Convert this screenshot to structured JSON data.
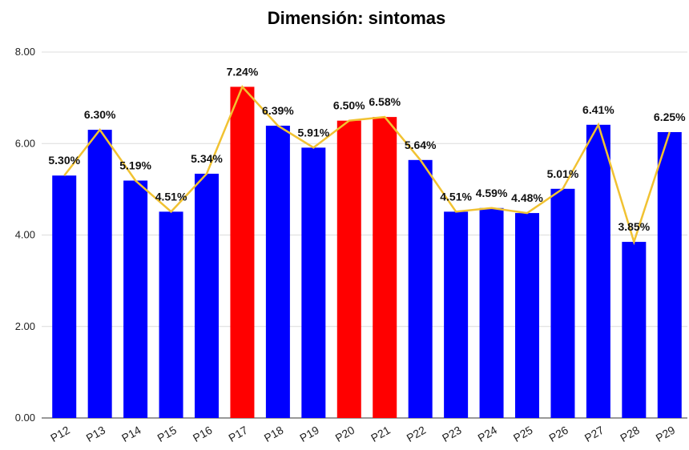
{
  "chart_data": {
    "type": "bar_line",
    "title": "Dimensión: sintomas",
    "categories": [
      "P12",
      "P13",
      "P14",
      "P15",
      "P16",
      "P17",
      "P18",
      "P19",
      "P20",
      "P21",
      "P22",
      "P23",
      "P24",
      "P25",
      "P26",
      "P27",
      "P28",
      "P29"
    ],
    "values": [
      5.3,
      6.3,
      5.19,
      4.51,
      5.34,
      7.24,
      6.39,
      5.91,
      6.5,
      6.58,
      5.64,
      4.51,
      4.59,
      4.48,
      5.01,
      6.41,
      3.85,
      6.25
    ],
    "value_labels": [
      "5.30%",
      "6.30%",
      "5.19%",
      "4.51%",
      "5.34%",
      "7.24%",
      "6.39%",
      "5.91%",
      "6.50%",
      "6.58%",
      "5.64%",
      "4.51%",
      "4.59%",
      "4.48%",
      "5.01%",
      "6.41%",
      "3.85%",
      "6.25%"
    ],
    "colors": [
      "#0000ff",
      "#0000ff",
      "#0000ff",
      "#0000ff",
      "#0000ff",
      "#ff0000",
      "#0000ff",
      "#0000ff",
      "#ff0000",
      "#ff0000",
      "#0000ff",
      "#0000ff",
      "#0000ff",
      "#0000ff",
      "#0000ff",
      "#0000ff",
      "#0000ff",
      "#0000ff"
    ],
    "line_color": "#f1c232",
    "ylim": [
      0,
      8
    ],
    "yticks": [
      {
        "value": 0,
        "label": "0.00"
      },
      {
        "value": 2,
        "label": "2.00"
      },
      {
        "value": 4,
        "label": "4.00"
      },
      {
        "value": 6,
        "label": "6.00"
      },
      {
        "value": 8,
        "label": "8.00"
      }
    ],
    "grid": true
  }
}
